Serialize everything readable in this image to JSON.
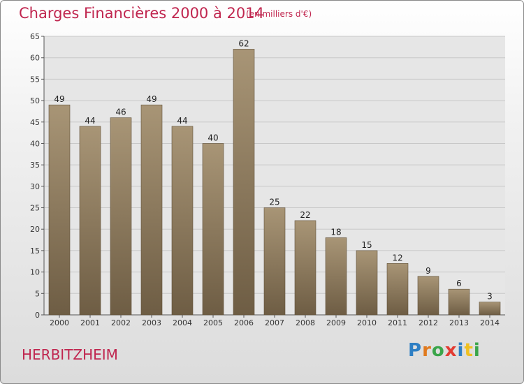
{
  "title": "Charges Financières 2000 à 2014",
  "subtitle": "(en milliers d'€)",
  "city": "HERBITZHEIM",
  "logo": {
    "letters": [
      "P",
      "r",
      "o",
      "x",
      "i",
      "t",
      "i"
    ],
    "colors": [
      "#2e7fc4",
      "#e07a1e",
      "#3aa54a",
      "#e23b32",
      "#2e7fc4",
      "#f0c020",
      "#3aa54a"
    ]
  },
  "colors": {
    "accent": "#c0264f",
    "bar_top": "#a89576",
    "bar_bottom": "#6e5d44",
    "grid": "#c8c8c8"
  },
  "chart_data": {
    "type": "bar",
    "categories": [
      "2000",
      "2001",
      "2002",
      "2003",
      "2004",
      "2005",
      "2006",
      "2007",
      "2008",
      "2009",
      "2010",
      "2011",
      "2012",
      "2013",
      "2014"
    ],
    "values": [
      49,
      44,
      46,
      49,
      44,
      40,
      62,
      25,
      22,
      18,
      15,
      12,
      9,
      6,
      3
    ],
    "y_ticks": [
      0,
      5,
      10,
      15,
      20,
      25,
      30,
      35,
      40,
      45,
      50,
      55,
      60,
      65
    ],
    "ylim": [
      0,
      65
    ],
    "grid": true,
    "data_labels": true
  }
}
